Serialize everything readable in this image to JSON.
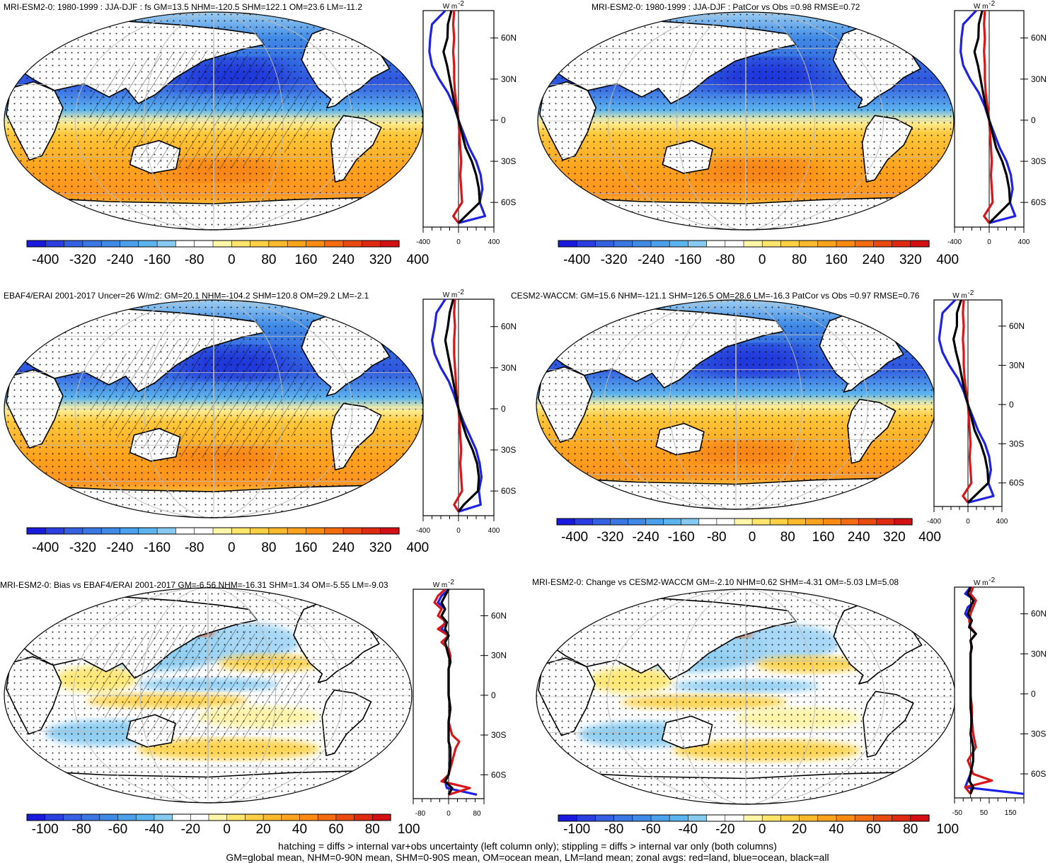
{
  "colors": {
    "main": [
      "#1a1adf",
      "#2b3fe0",
      "#3560e2",
      "#3b77e3",
      "#3f8ae6",
      "#4aa0ea",
      "#5cb4ee",
      "#86caf1",
      "#ffffff",
      "#ffffff",
      "#fff6a8",
      "#ffe56b",
      "#ffd043",
      "#ffba2b",
      "#ffa21c",
      "#ff8a12",
      "#f56c10",
      "#e84a10",
      "#df2a12",
      "#d30f14"
    ],
    "land": "#d8161a",
    "ocean": "#1e22e6",
    "all": "#000000"
  },
  "footer": {
    "line1": "hatching = diffs > internal var+obs uncertainty (left column only); stippling = diffs > internal var only (both columns)",
    "line2": "GM=global mean, NHM=0-90N mean, SHM=0-90S mean, OM=ocean mean, LM=land mean; zonal avgs: red=land, blue=ocean, black=all"
  },
  "chart_data": [
    {
      "type": "heatmap",
      "panel": "mri-esm2-0-model",
      "title": "MRI-ESM2-0: 1980-1999 : JJA-DJF : fs GM=13.5 NHM=-120.5 SHM=122.1 OM=23.6 LM=-11.2",
      "kind": "abs",
      "hatch": true,
      "colorbar": {
        "labels": [
          "-400",
          "-320",
          "-240",
          "-160",
          "-80",
          "0",
          "80",
          "160",
          "240",
          "320",
          "400"
        ]
      },
      "zonal": {
        "unit": "W m-2",
        "lat_labels": [
          "60N",
          "30N",
          "0",
          "30S",
          "60S"
        ],
        "x_labels": [
          "-400",
          "0",
          "400"
        ],
        "xlim": [
          -400,
          400
        ],
        "lat": [
          80,
          70,
          60,
          50,
          40,
          30,
          20,
          10,
          0,
          -10,
          -20,
          -30,
          -40,
          -50,
          -60,
          -70,
          -75
        ],
        "all": [
          -80,
          -120,
          -125,
          -170,
          -130,
          -100,
          -70,
          -40,
          0,
          40,
          80,
          150,
          200,
          230,
          240,
          80,
          0
        ],
        "ocean": [
          -150,
          -300,
          -320,
          -330,
          -300,
          -220,
          -120,
          -50,
          0,
          60,
          120,
          200,
          250,
          270,
          240,
          300,
          0
        ],
        "land": [
          -50,
          -60,
          -50,
          -60,
          -50,
          -50,
          -40,
          -20,
          0,
          10,
          20,
          30,
          20,
          30,
          40,
          -60,
          0
        ]
      }
    },
    {
      "type": "heatmap",
      "panel": "mri-esm2-0-vs-obs",
      "title": "MRI-ESM2-0: 1980-1999 : JJA-DJF : PatCor vs Obs =0.98 RMSE=0.72",
      "kind": "abs",
      "hatch": false,
      "colorbar": {
        "labels": [
          "-400",
          "-320",
          "-240",
          "-160",
          "-80",
          "0",
          "80",
          "160",
          "240",
          "320",
          "400"
        ]
      },
      "zonal": {
        "unit": "W m-2",
        "lat_labels": [
          "60N",
          "30N",
          "0",
          "30S",
          "60S"
        ],
        "x_labels": [
          "-400",
          "0",
          "400"
        ],
        "xlim": [
          -400,
          400
        ],
        "lat": [
          80,
          70,
          60,
          50,
          40,
          30,
          20,
          10,
          0,
          -10,
          -20,
          -30,
          -40,
          -50,
          -60,
          -70,
          -75
        ],
        "all": [
          -80,
          -120,
          -125,
          -170,
          -130,
          -100,
          -70,
          -40,
          0,
          40,
          80,
          150,
          200,
          230,
          240,
          80,
          0
        ],
        "ocean": [
          -150,
          -300,
          -320,
          -330,
          -300,
          -220,
          -120,
          -50,
          0,
          60,
          120,
          200,
          250,
          270,
          240,
          300,
          0
        ],
        "land": [
          -50,
          -60,
          -50,
          -60,
          -50,
          -50,
          -40,
          -20,
          0,
          10,
          20,
          30,
          20,
          30,
          40,
          -60,
          0
        ]
      }
    },
    {
      "type": "heatmap",
      "panel": "ebaf4-erai-obs",
      "title": "EBAF4/ERAI 2001-2017 Uncer=26 W/m2: GM=20.1 NHM=-104.2 SHM=120.8 OM=29.2 LM=-2.1",
      "kind": "abs",
      "hatch": true,
      "colorbar": {
        "labels": [
          "-400",
          "-320",
          "-240",
          "-160",
          "-80",
          "0",
          "80",
          "160",
          "240",
          "320",
          "400"
        ]
      },
      "zonal": {
        "unit": "W m-2",
        "lat_labels": [
          "60N",
          "30N",
          "0",
          "30S",
          "60S"
        ],
        "x_labels": [
          "-400",
          "0",
          "400"
        ],
        "xlim": [
          -400,
          400
        ],
        "lat": [
          80,
          70,
          60,
          50,
          40,
          30,
          20,
          10,
          0,
          -10,
          -20,
          -30,
          -40,
          -50,
          -60,
          -70,
          -75
        ],
        "all": [
          -60,
          -100,
          -120,
          -150,
          -120,
          -90,
          -60,
          -30,
          0,
          40,
          90,
          160,
          210,
          230,
          220,
          60,
          0
        ],
        "ocean": [
          -150,
          -250,
          -270,
          -300,
          -270,
          -200,
          -110,
          -50,
          0,
          60,
          130,
          200,
          240,
          260,
          230,
          250,
          0
        ],
        "land": [
          -40,
          -50,
          -40,
          -50,
          -50,
          -40,
          -30,
          -20,
          0,
          10,
          20,
          30,
          20,
          30,
          40,
          -50,
          0
        ]
      }
    },
    {
      "type": "heatmap",
      "panel": "cesm2-waccm",
      "title": "CESM2-WACCM: GM=15.6 NHM=-121.1 SHM=126.5 OM=28.6 LM=-16.3 PatCor vs Obs =0.97 RMSE=0.76",
      "kind": "abs",
      "hatch": false,
      "colorbar": {
        "labels": [
          "-400",
          "-320",
          "-240",
          "-160",
          "-80",
          "0",
          "80",
          "160",
          "240",
          "320",
          "400"
        ]
      },
      "zonal": {
        "unit": "W m-2",
        "lat_labels": [
          "60N",
          "30N",
          "0",
          "30S",
          "60S"
        ],
        "x_labels": [
          "-400",
          "0",
          "400"
        ],
        "xlim": [
          -400,
          400
        ],
        "lat": [
          80,
          70,
          60,
          50,
          40,
          30,
          20,
          10,
          0,
          -10,
          -20,
          -30,
          -40,
          -50,
          -60,
          -70,
          -75
        ],
        "all": [
          -80,
          -130,
          -130,
          -170,
          -140,
          -100,
          -70,
          -40,
          0,
          40,
          80,
          150,
          200,
          230,
          240,
          80,
          0
        ],
        "ocean": [
          -150,
          -300,
          -320,
          -340,
          -300,
          -220,
          -120,
          -50,
          0,
          60,
          120,
          200,
          250,
          270,
          240,
          300,
          0
        ],
        "land": [
          -50,
          -60,
          -50,
          -60,
          -50,
          -50,
          -40,
          -20,
          0,
          10,
          20,
          30,
          20,
          30,
          40,
          -60,
          0
        ]
      }
    },
    {
      "type": "heatmap",
      "panel": "bias-vs-obs",
      "title": "MRI-ESM2-0: Bias vs EBAF4/ERAI 2001-2017 GM=-6.56 NHM=-16.31 SHM=1.34 OM=-5.55 LM=-9.03",
      "kind": "diff",
      "hatch": true,
      "colorbar": {
        "labels": [
          "-100",
          "-80",
          "-60",
          "-40",
          "-20",
          "0",
          "20",
          "40",
          "60",
          "80",
          "100"
        ]
      },
      "zonal": {
        "unit": "W m-2",
        "lat_labels": [
          "60N",
          "30N",
          "0",
          "30S",
          "60S"
        ],
        "x_labels": [
          "-80",
          "0",
          "80"
        ],
        "xlim": [
          -100,
          100
        ],
        "lat": [
          80,
          75,
          70,
          65,
          60,
          55,
          50,
          45,
          40,
          35,
          30,
          25,
          20,
          10,
          0,
          -10,
          -20,
          -30,
          -35,
          -40,
          -50,
          -60,
          -65,
          -70,
          -75
        ],
        "all": [
          0,
          -10,
          -20,
          -10,
          -20,
          -5,
          -10,
          0,
          -10,
          -5,
          0,
          5,
          0,
          0,
          0,
          5,
          0,
          0,
          0,
          5,
          5,
          0,
          -10,
          10,
          0
        ],
        "ocean": [
          0,
          -20,
          -30,
          -10,
          -20,
          -10,
          -20,
          0,
          -10,
          -5,
          0,
          5,
          0,
          0,
          0,
          5,
          0,
          0,
          0,
          5,
          5,
          0,
          -10,
          -5,
          80
        ],
        "land": [
          -10,
          -30,
          -40,
          -20,
          -30,
          -5,
          -30,
          0,
          -20,
          0,
          5,
          5,
          0,
          0,
          0,
          5,
          0,
          10,
          30,
          20,
          10,
          0,
          -20,
          60,
          0
        ]
      }
    },
    {
      "type": "heatmap",
      "panel": "change-vs-cesm2",
      "title": "MRI-ESM2-0: Change vs CESM2-WACCM GM=-2.10 NHM=0.62 SHM=-4.31 OM=-5.03 LM=5.08",
      "kind": "diff",
      "hatch": false,
      "colorbar": {
        "labels": [
          "-100",
          "-80",
          "-60",
          "-40",
          "-20",
          "0",
          "20",
          "40",
          "60",
          "80",
          "100"
        ]
      },
      "zonal": {
        "unit": "W m-2",
        "lat_labels": [
          "60N",
          "30N",
          "0",
          "30S",
          "60S"
        ],
        "x_labels": [
          "-50",
          "50",
          "150"
        ],
        "xlim": [
          -60,
          200
        ],
        "lat": [
          80,
          75,
          70,
          65,
          60,
          55,
          50,
          45,
          40,
          35,
          30,
          20,
          10,
          0,
          -10,
          -20,
          -30,
          -40,
          -50,
          -60,
          -65,
          -70,
          -75
        ],
        "all": [
          0,
          -10,
          10,
          0,
          -10,
          5,
          -5,
          20,
          0,
          5,
          0,
          0,
          0,
          0,
          0,
          5,
          0,
          10,
          10,
          0,
          -5,
          10,
          0
        ],
        "ocean": [
          0,
          -20,
          20,
          -10,
          -20,
          0,
          -5,
          20,
          0,
          5,
          0,
          0,
          0,
          0,
          0,
          5,
          0,
          10,
          10,
          0,
          -10,
          -20,
          200
        ],
        "land": [
          10,
          0,
          20,
          10,
          0,
          -5,
          0,
          20,
          0,
          5,
          0,
          0,
          0,
          0,
          5,
          5,
          10,
          20,
          -10,
          10,
          80,
          -20,
          0
        ]
      }
    }
  ]
}
